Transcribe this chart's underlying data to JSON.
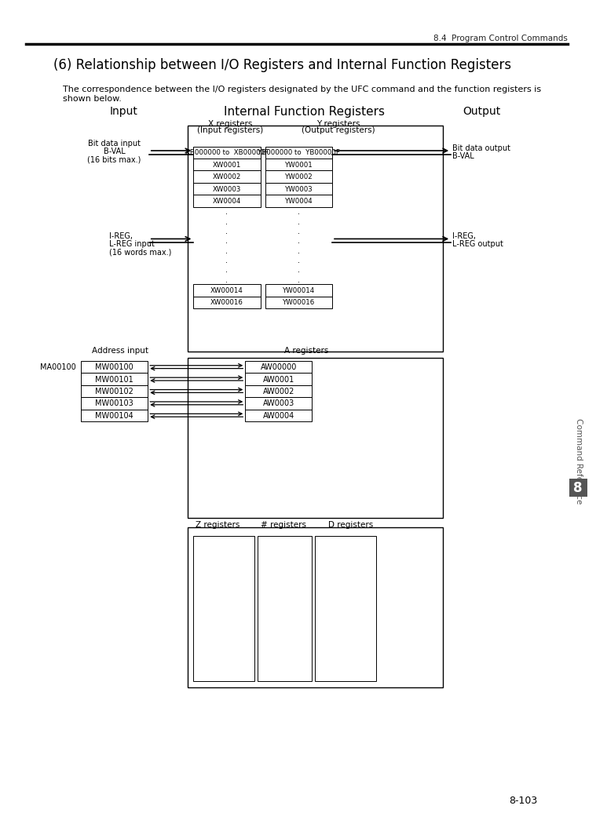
{
  "page_header": "8.4  Program Control Commands",
  "title": "(6) Relationship between I/O Registers and Internal Function Registers",
  "desc1": "The correspondence between the I/O registers designated by the UFC command and the function registers is",
  "desc2": "shown below.",
  "label_input": "Input",
  "label_internal": "Internal Function Registers",
  "label_output": "Output",
  "label_x_reg": "X registers",
  "label_x_reg2": "(Input registers)",
  "label_y_reg": "Y registers",
  "label_y_reg2": "(Output registers)",
  "label_addr": "Address input",
  "label_a_reg": "A registers",
  "label_z_reg": "Z registers",
  "label_hash_reg": "# registers",
  "label_d_reg": "D registers",
  "bit_input1": "Bit data input",
  "bit_input2": "B-VAL",
  "bit_input3": "(16 bits max.)",
  "bit_output1": "Bit data output",
  "bit_output2": "B-VAL",
  "ireg_input1": "I-REG,",
  "ireg_input2": "L-REG input",
  "ireg_input3": "(16 words max.)",
  "ireg_output1": "I-REG,",
  "ireg_output2": "L-REG output",
  "ma_label": "MA00100",
  "x_rows": [
    "XB000000 to  XB00000F",
    "XW0001",
    "XW0002",
    "XW0003",
    "XW0004",
    "XW00014",
    "XW00016"
  ],
  "y_rows": [
    "YB000000 to  YB00000F",
    "YW0001",
    "YW0002",
    "YW0003",
    "YW0004",
    "YW00014",
    "YW00016"
  ],
  "mw_rows": [
    "MW00100",
    "MW00101",
    "MW00102",
    "MW00103",
    "MW00104"
  ],
  "aw_rows": [
    "AW00000",
    "AW0001",
    "AW0002",
    "AW0003",
    "AW0004"
  ],
  "sidebar_text": "Command Reference",
  "sidebar_num": "8",
  "page_num": "8-103",
  "bg": "#ffffff"
}
